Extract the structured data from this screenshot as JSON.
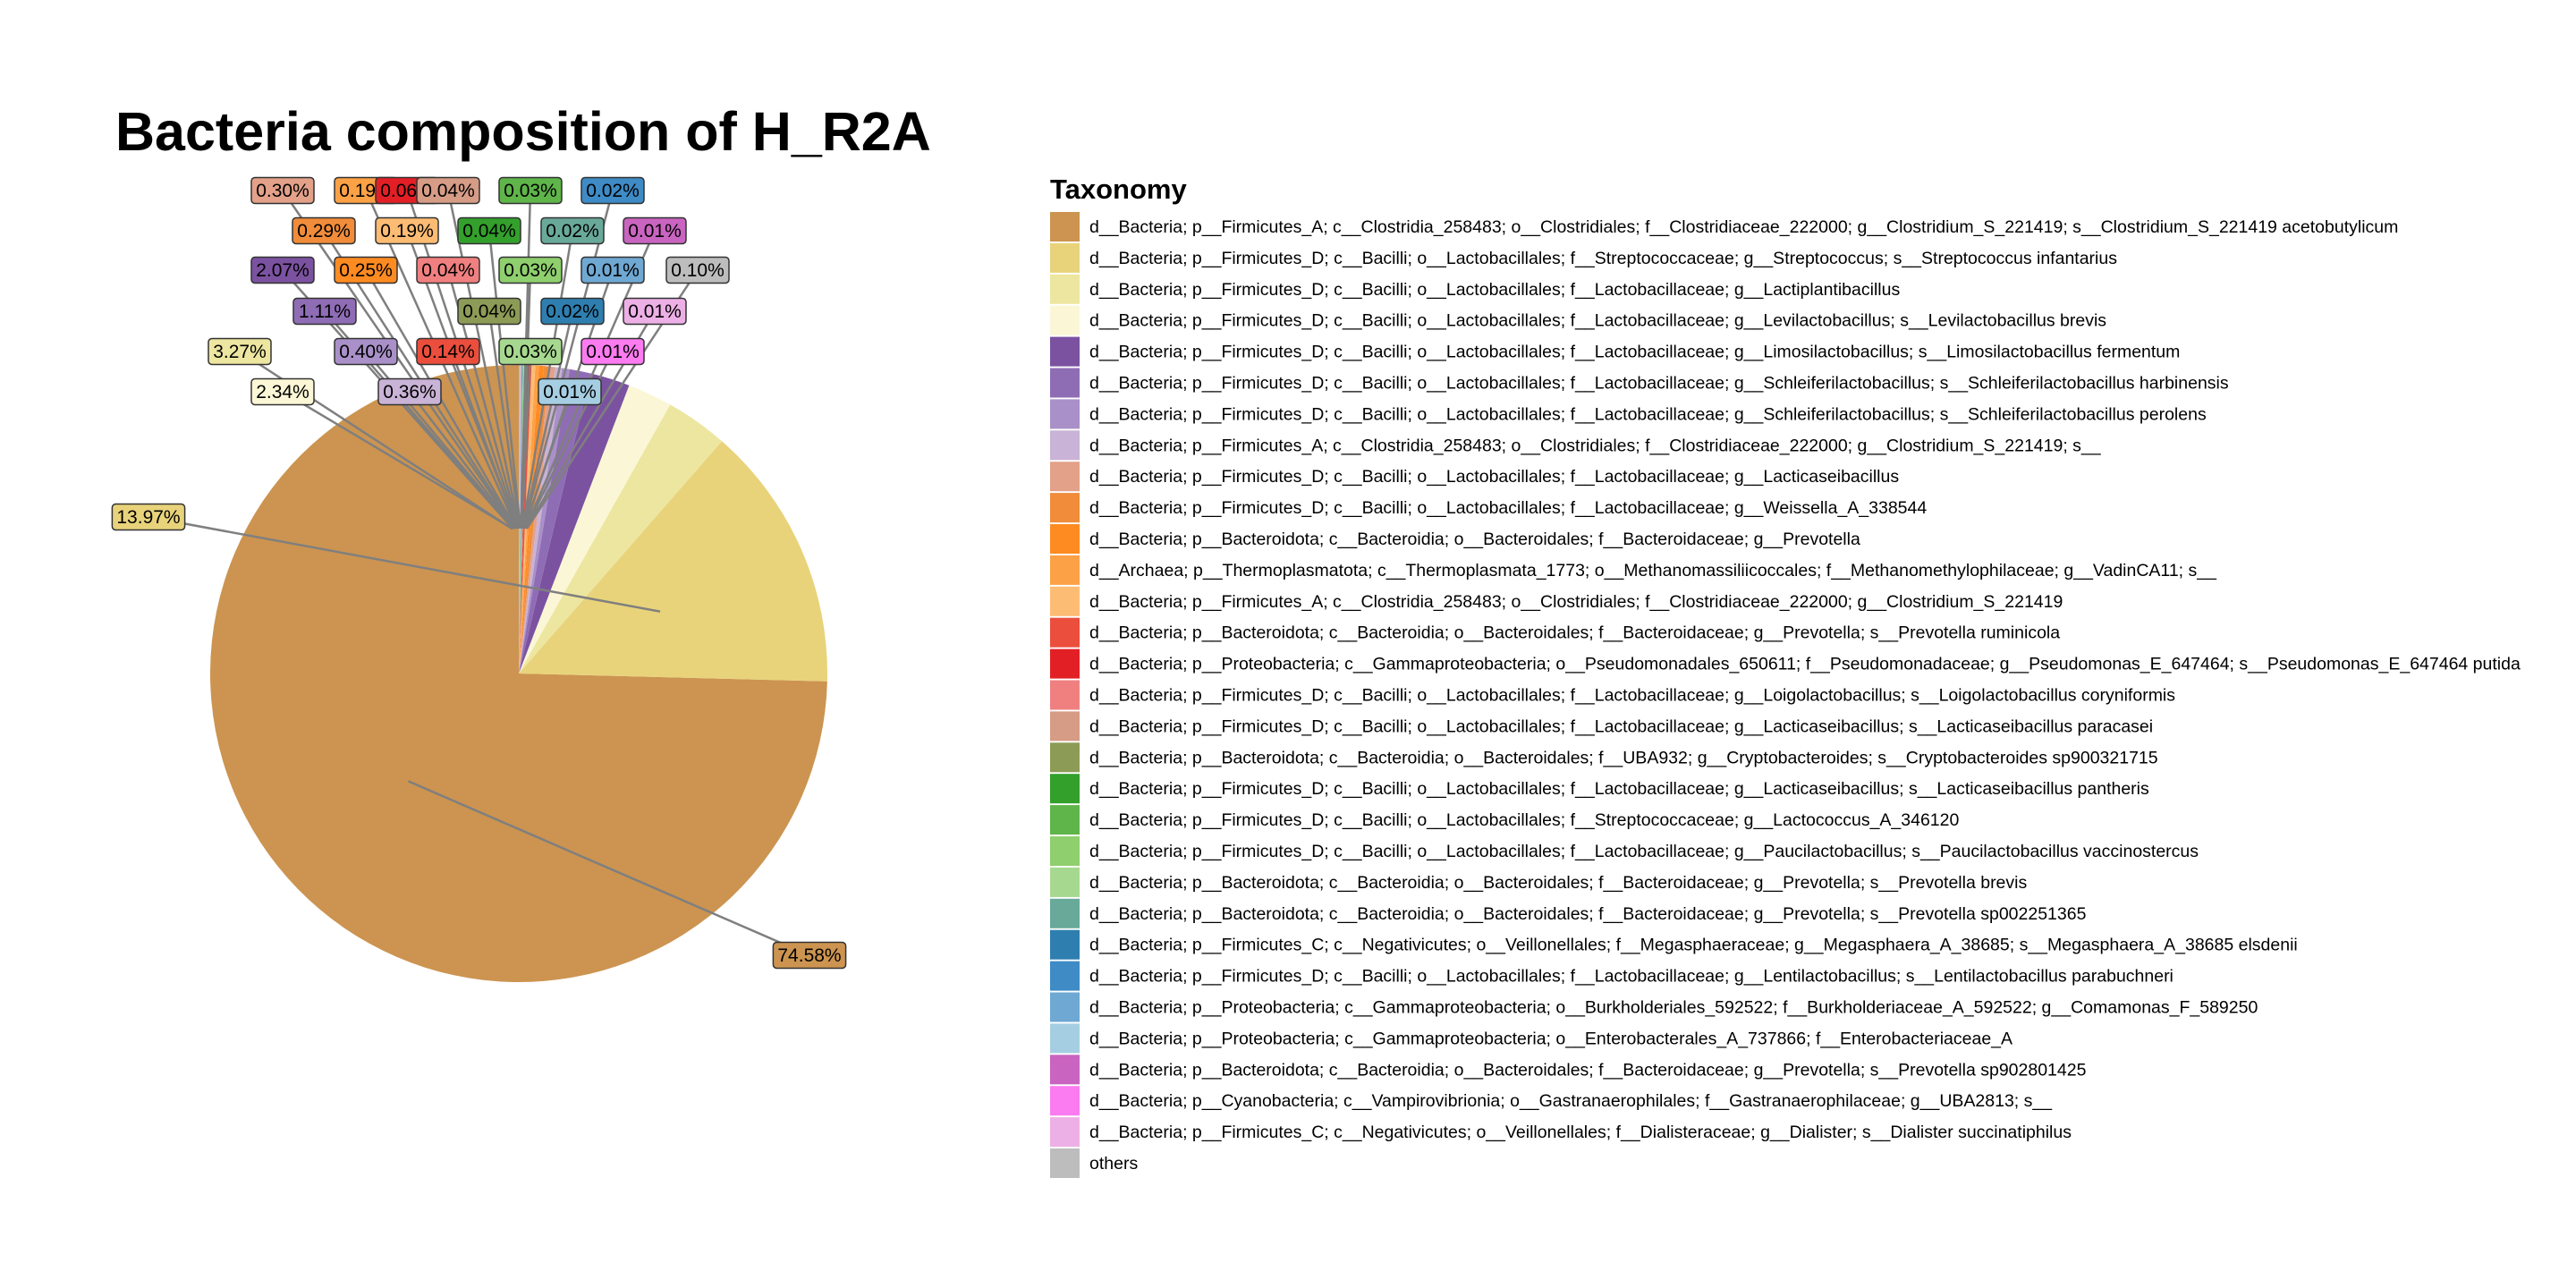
{
  "chart_data": {
    "type": "pie",
    "title": "Bacteria composition of H_R2A",
    "legend_title": "Taxonomy",
    "legend_position": "right",
    "slices": [
      {
        "name": "d__Bacteria; p__Firmicutes_A; c__Clostridia_258483; o__Clostridiales; f__Clostridiaceae_222000; g__Clostridium_S_221419; s__Clostridium_S_221419 acetobutylicum",
        "value": 74.58,
        "label": "74.58%",
        "color": "#CC9450"
      },
      {
        "name": "d__Bacteria; p__Firmicutes_D; c__Bacilli; o__Lactobacillales; f__Streptococcaceae; g__Streptococcus; s__Streptococcus infantarius",
        "value": 13.97,
        "label": "13.97%",
        "color": "#E8D37B"
      },
      {
        "name": "d__Bacteria; p__Firmicutes_D; c__Bacilli; o__Lactobacillales; f__Lactobacillaceae; g__Lactiplantibacillus",
        "value": 3.27,
        "label": "3.27%",
        "color": "#EDE6A0"
      },
      {
        "name": "d__Bacteria; p__Firmicutes_D; c__Bacilli; o__Lactobacillales; f__Lactobacillaceae; g__Levilactobacillus; s__Levilactobacillus brevis",
        "value": 2.34,
        "label": "2.34%",
        "color": "#FBF7D6"
      },
      {
        "name": "d__Bacteria; p__Firmicutes_D; c__Bacilli; o__Lactobacillales; f__Lactobacillaceae; g__Limosilactobacillus; s__Limosilactobacillus fermentum",
        "value": 2.07,
        "label": "2.07%",
        "color": "#7B52A0"
      },
      {
        "name": "d__Bacteria; p__Firmicutes_D; c__Bacilli; o__Lactobacillales; f__Lactobacillaceae; g__Schleiferilactobacillus; s__Schleiferilactobacillus harbinensis",
        "value": 1.11,
        "label": "1.11%",
        "color": "#8F6DB5"
      },
      {
        "name": "d__Bacteria; p__Firmicutes_D; c__Bacilli; o__Lactobacillales; f__Lactobacillaceae; g__Schleiferilactobacillus; s__Schleiferilactobacillus perolens",
        "value": 0.4,
        "label": "0.40%",
        "color": "#A990C8"
      },
      {
        "name": "d__Bacteria; p__Firmicutes_A; c__Clostridia_258483; o__Clostridiales; f__Clostridiaceae_222000; g__Clostridium_S_221419; s__",
        "value": 0.36,
        "label": "0.36%",
        "color": "#C9B3D6"
      },
      {
        "name": "d__Bacteria; p__Firmicutes_D; c__Bacilli; o__Lactobacillales; f__Lactobacillaceae; g__Lacticaseibacillus",
        "value": 0.3,
        "label": "0.30%",
        "color": "#E3A189"
      },
      {
        "name": "d__Bacteria; p__Firmicutes_D; c__Bacilli; o__Lactobacillales; f__Lactobacillaceae; g__Weissella_A_338544",
        "value": 0.29,
        "label": "0.29%",
        "color": "#F08C3A"
      },
      {
        "name": "d__Bacteria; p__Bacteroidota; c__Bacteroidia; o__Bacteroidales; f__Bacteroidaceae; g__Prevotella",
        "value": 0.25,
        "label": "0.25%",
        "color": "#FE8B22"
      },
      {
        "name": "d__Archaea; p__Thermoplasmatota; c__Thermoplasmata_1773; o__Methanomassiliicoccales; f__Methanomethylophilaceae; g__VadinCA11; s__",
        "value": 0.19,
        "label": "0.19%",
        "color": "#FDA146"
      },
      {
        "name": "d__Bacteria; p__Firmicutes_A; c__Clostridia_258483; o__Clostridiales; f__Clostridiaceae_222000; g__Clostridium_S_221419",
        "value": 0.19,
        "label": "0.19%",
        "color": "#FDBC74"
      },
      {
        "name": "d__Bacteria; p__Bacteroidota; c__Bacteroidia; o__Bacteroidales; f__Bacteroidaceae; g__Prevotella; s__Prevotella ruminicola",
        "value": 0.14,
        "label": "0.14%",
        "color": "#EB4E3D"
      },
      {
        "name": "d__Bacteria; p__Proteobacteria; c__Gammaproteobacteria; o__Pseudomonadales_650611; f__Pseudomonadaceae; g__Pseudomonas_E_647464; s__Pseudomonas_E_647464 putida",
        "value": 0.06,
        "label": "0.06%",
        "color": "#E31F26"
      },
      {
        "name": "d__Bacteria; p__Firmicutes_D; c__Bacilli; o__Lactobacillales; f__Lactobacillaceae; g__Loigolactobacillus; s__Loigolactobacillus coryniformis",
        "value": 0.04,
        "label": "0.04%",
        "color": "#F08080"
      },
      {
        "name": "d__Bacteria; p__Firmicutes_D; c__Bacilli; o__Lactobacillales; f__Lactobacillaceae; g__Lacticaseibacillus; s__Lacticaseibacillus paracasei",
        "value": 0.04,
        "label": "0.04%",
        "color": "#D69C86"
      },
      {
        "name": "d__Bacteria; p__Bacteroidota; c__Bacteroidia; o__Bacteroidales; f__UBA932; g__Cryptobacteroides; s__Cryptobacteroides sp900321715",
        "value": 0.04,
        "label": "0.04%",
        "color": "#8C9B56"
      },
      {
        "name": "d__Bacteria; p__Firmicutes_D; c__Bacilli; o__Lactobacillales; f__Lactobacillaceae; g__Lacticaseibacillus; s__Lacticaseibacillus pantheris",
        "value": 0.04,
        "label": "0.04%",
        "color": "#33A02C"
      },
      {
        "name": "d__Bacteria; p__Firmicutes_D; c__Bacilli; o__Lactobacillales; f__Streptococcaceae; g__Lactococcus_A_346120",
        "value": 0.03,
        "label": "0.03%",
        "color": "#5FB54A"
      },
      {
        "name": "d__Bacteria; p__Firmicutes_D; c__Bacilli; o__Lactobacillales; f__Lactobacillaceae; g__Paucilactobacillus; s__Paucilactobacillus vaccinostercus",
        "value": 0.03,
        "label": "0.03%",
        "color": "#8FCF6E"
      },
      {
        "name": "d__Bacteria; p__Bacteroidota; c__Bacteroidia; o__Bacteroidales; f__Bacteroidaceae; g__Prevotella; s__Prevotella brevis",
        "value": 0.03,
        "label": "0.03%",
        "color": "#A6D98F"
      },
      {
        "name": "d__Bacteria; p__Bacteroidota; c__Bacteroidia; o__Bacteroidales; f__Bacteroidaceae; g__Prevotella; s__Prevotella sp002251365",
        "value": 0.02,
        "label": "0.02%",
        "color": "#69A99A"
      },
      {
        "name": "d__Bacteria; p__Firmicutes_C; c__Negativicutes; o__Veillonellales; f__Megasphaeraceae; g__Megasphaera_A_38685; s__Megasphaera_A_38685 elsdenii",
        "value": 0.02,
        "label": "0.02%",
        "color": "#2E7FB0"
      },
      {
        "name": "d__Bacteria; p__Firmicutes_D; c__Bacilli; o__Lactobacillales; f__Lactobacillaceae; g__Lentilactobacillus; s__Lentilactobacillus parabuchneri",
        "value": 0.02,
        "label": "0.02%",
        "color": "#3E8BC6"
      },
      {
        "name": "d__Bacteria; p__Proteobacteria; c__Gammaproteobacteria; o__Burkholderiales_592522; f__Burkholderiaceae_A_592522; g__Comamonas_F_589250",
        "value": 0.01,
        "label": "0.01%",
        "color": "#6FA8D3"
      },
      {
        "name": "d__Bacteria; p__Proteobacteria; c__Gammaproteobacteria; o__Enterobacterales_A_737866; f__Enterobacteriaceae_A",
        "value": 0.01,
        "label": "0.01%",
        "color": "#A6CEE3"
      },
      {
        "name": "d__Bacteria; p__Bacteroidota; c__Bacteroidia; o__Bacteroidales; f__Bacteroidaceae; g__Prevotella; s__Prevotella sp902801425",
        "value": 0.01,
        "label": "0.01%",
        "color": "#C964C0"
      },
      {
        "name": "d__Bacteria; p__Cyanobacteria; c__Vampirovibrionia; o__Gastranaerophilales; f__Gastranaerophilaceae; g__UBA2813; s__",
        "value": 0.01,
        "label": "0.01%",
        "color": "#FB7BF0"
      },
      {
        "name": "d__Bacteria; p__Firmicutes_C; c__Negativicutes; o__Veillonellales; f__Dialisteraceae; g__Dialister; s__Dialister succinatiphilus",
        "value": 0.01,
        "label": "0.01%",
        "color": "#EDB0E6"
      },
      {
        "name": "others",
        "value": 0.1,
        "label": "0.10%",
        "color": "#BDBDBD"
      }
    ]
  }
}
